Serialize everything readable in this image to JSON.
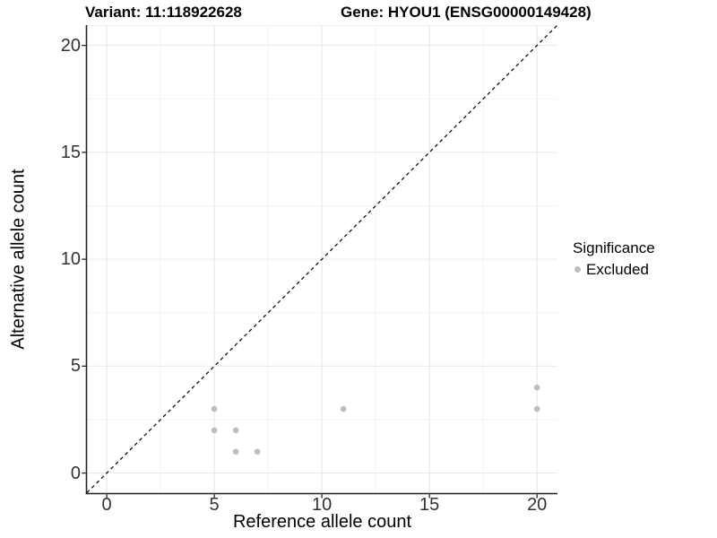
{
  "title": {
    "variant": "Variant: 11:118922628",
    "gene": "Gene: HYOU1 (ENSG00000149428)"
  },
  "legend": {
    "title": "Significance",
    "items": [
      {
        "label": "Excluded",
        "color": "#bebebe"
      }
    ]
  },
  "chart_data": {
    "type": "scatter",
    "title": "Variant: 11:118922628 / Gene: HYOU1 (ENSG00000149428)",
    "xlabel": "Reference allele count",
    "ylabel": "Alternative allele count",
    "xlim": [
      -0.92,
      20.95
    ],
    "ylim": [
      -0.94,
      20.95
    ],
    "x_ticks": [
      0,
      5,
      10,
      15,
      20
    ],
    "y_ticks": [
      0,
      5,
      10,
      15,
      20
    ],
    "x_minor_ticks": [
      2.5,
      7.5,
      12.5,
      17.5
    ],
    "y_minor_ticks": [
      2.5,
      7.5,
      12.5,
      17.5
    ],
    "grid": "major+minor",
    "legend_position": "right",
    "series": [
      {
        "name": "Excluded",
        "color": "#bebebe",
        "points": [
          [
            5,
            2
          ],
          [
            5,
            3
          ],
          [
            6,
            1
          ],
          [
            6,
            2
          ],
          [
            7,
            1
          ],
          [
            11,
            3
          ],
          [
            20,
            3
          ],
          [
            20,
            4
          ]
        ]
      }
    ],
    "reference_line": {
      "kind": "identity y=x",
      "style": "dashed",
      "color": "#111111"
    }
  },
  "colors": {
    "background": "#ffffff",
    "grid_major": "#e9e9e9",
    "grid_minor": "#f3f3f3",
    "axis_line": "#222222",
    "tick_text": "#333333",
    "point": "#bebebe"
  }
}
